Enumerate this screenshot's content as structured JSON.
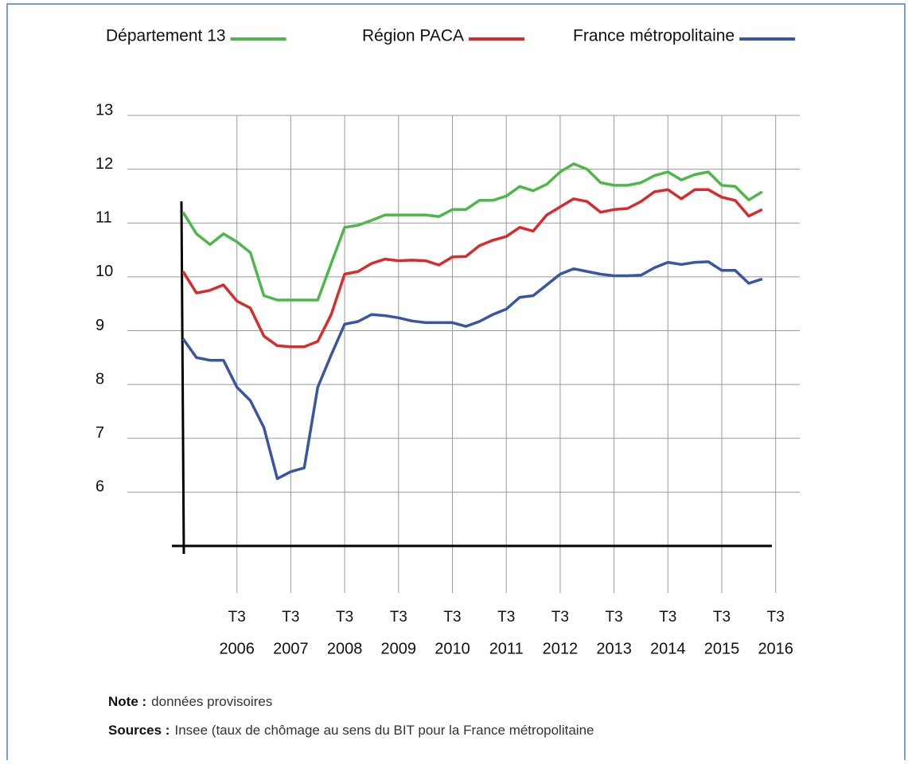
{
  "chart_data": {
    "type": "line",
    "categories": [
      null,
      null,
      null,
      null,
      {
        "quarter": "T3",
        "year": "2006"
      },
      null,
      null,
      null,
      {
        "quarter": "T3",
        "year": "2007"
      },
      null,
      null,
      null,
      {
        "quarter": "T3",
        "year": "2008"
      },
      null,
      null,
      null,
      {
        "quarter": "T3",
        "year": "2009"
      },
      null,
      null,
      null,
      {
        "quarter": "T3",
        "year": "2010"
      },
      null,
      null,
      null,
      {
        "quarter": "T3",
        "year": "2011"
      },
      null,
      null,
      null,
      {
        "quarter": "T3",
        "year": "2012"
      },
      null,
      null,
      null,
      {
        "quarter": "T3",
        "year": "2013"
      },
      null,
      null,
      null,
      {
        "quarter": "T3",
        "year": "2014"
      },
      null,
      null,
      null,
      {
        "quarter": "T3",
        "year": "2015"
      },
      null,
      null,
      null,
      {
        "quarter": "T3",
        "year": "2016"
      }
    ],
    "series": [
      {
        "name": "Département 13",
        "color": "#4cb848",
        "values": [
          11.2,
          10.8,
          10.6,
          10.8,
          10.65,
          10.45,
          9.65,
          9.57,
          9.57,
          9.57,
          9.57,
          10.25,
          10.92,
          10.96,
          11.05,
          11.15,
          11.15,
          11.15,
          11.15,
          11.12,
          11.25,
          11.25,
          11.42,
          11.42,
          11.5,
          11.68,
          11.6,
          11.72,
          11.95,
          12.1,
          12.0,
          11.75,
          11.7,
          11.7,
          11.75,
          11.88,
          11.95,
          11.8,
          11.9,
          11.95,
          11.7,
          11.68,
          11.43,
          11.58,
          null
        ]
      },
      {
        "name": "Région PACA",
        "color": "#d92b2b",
        "values": [
          10.1,
          9.7,
          9.75,
          9.85,
          9.55,
          9.42,
          8.9,
          8.72,
          8.7,
          8.7,
          8.8,
          9.3,
          10.05,
          10.1,
          10.25,
          10.33,
          10.3,
          10.31,
          10.3,
          10.22,
          10.37,
          10.38,
          10.58,
          10.68,
          10.75,
          10.92,
          10.85,
          11.15,
          11.3,
          11.45,
          11.4,
          11.2,
          11.25,
          11.27,
          11.4,
          11.58,
          11.62,
          11.45,
          11.62,
          11.62,
          11.48,
          11.42,
          11.13,
          11.25,
          null
        ]
      },
      {
        "name": "France métropolitaine",
        "color": "#3a55a4",
        "values": [
          8.85,
          8.5,
          8.45,
          8.45,
          7.95,
          7.7,
          7.2,
          6.25,
          6.38,
          6.45,
          7.95,
          8.55,
          9.12,
          9.17,
          9.3,
          9.28,
          9.24,
          9.18,
          9.15,
          9.15,
          9.15,
          9.08,
          9.17,
          9.3,
          9.4,
          9.62,
          9.65,
          9.85,
          10.05,
          10.15,
          10.1,
          10.05,
          10.02,
          10.02,
          10.03,
          10.17,
          10.27,
          10.23,
          10.27,
          10.28,
          10.12,
          10.12,
          9.88,
          9.96,
          null
        ]
      }
    ],
    "ylim": [
      5,
      13
    ],
    "yticks": [
      6,
      7,
      8,
      9,
      10,
      11,
      12,
      13
    ],
    "grid": true,
    "notes": [
      {
        "label": "Note :",
        "text": "données provisoires"
      },
      {
        "label": "Sources :",
        "text": "Insee (taux de chômage au sens du BIT pour la France métropolitaine"
      }
    ]
  }
}
